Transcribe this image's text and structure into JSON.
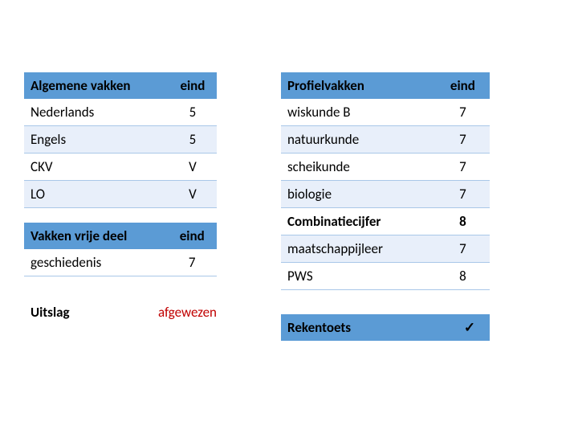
{
  "colors": {
    "header_bg": "#5b9bd5",
    "row_alt_bg": "#e8effa",
    "row_border": "#a9c7e8",
    "afgewezen": "#c00000",
    "text": "#000000",
    "page_bg": "#ffffff"
  },
  "table_algemeen": {
    "header": {
      "col1": "Algemene vakken",
      "col2": "eind"
    },
    "rows": [
      {
        "label": "Nederlands",
        "value": "5"
      },
      {
        "label": "Engels",
        "value": "5"
      },
      {
        "label": "CKV",
        "value": "V"
      },
      {
        "label": "LO",
        "value": "V"
      }
    ]
  },
  "table_vrijedeel": {
    "header": {
      "col1": "Vakken vrije deel",
      "col2": "eind"
    },
    "rows": [
      {
        "label": "geschiedenis",
        "value": "7"
      }
    ]
  },
  "table_profiel": {
    "header": {
      "col1": "Profielvakken",
      "col2": "eind"
    },
    "rows": [
      {
        "label": "wiskunde B",
        "value": "7"
      },
      {
        "label": "natuurkunde",
        "value": "7"
      },
      {
        "label": "scheikunde",
        "value": "7"
      },
      {
        "label": "biologie",
        "value": "7"
      },
      {
        "label": "Combinatiecijfer",
        "value": "8",
        "bold": true
      },
      {
        "label": "maatschappijleer",
        "value": "7"
      },
      {
        "label": "PWS",
        "value": "8"
      }
    ]
  },
  "uitslag": {
    "label": "Uitslag",
    "value": "afgewezen"
  },
  "rekentoets": {
    "label": "Rekentoets",
    "value": "✓"
  }
}
